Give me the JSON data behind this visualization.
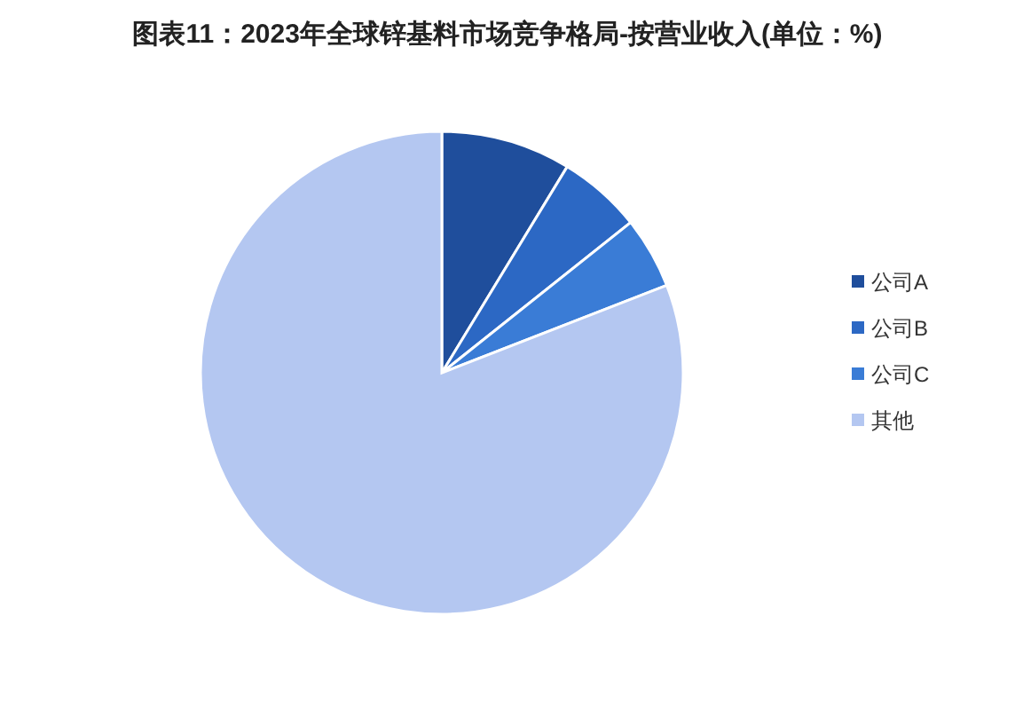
{
  "chart_data": {
    "type": "pie",
    "title": "图表11：2023年全球锌基料市场竞争格局-按营业收入(单位：%)",
    "categories": [
      "公司A",
      "公司B",
      "公司C",
      "其他"
    ],
    "values": [
      8.7,
      5.6,
      4.8,
      80.9
    ],
    "colors": [
      "#1f4e9c",
      "#2c68c4",
      "#3a7cd6",
      "#b4c7f1"
    ],
    "legend": "right"
  }
}
